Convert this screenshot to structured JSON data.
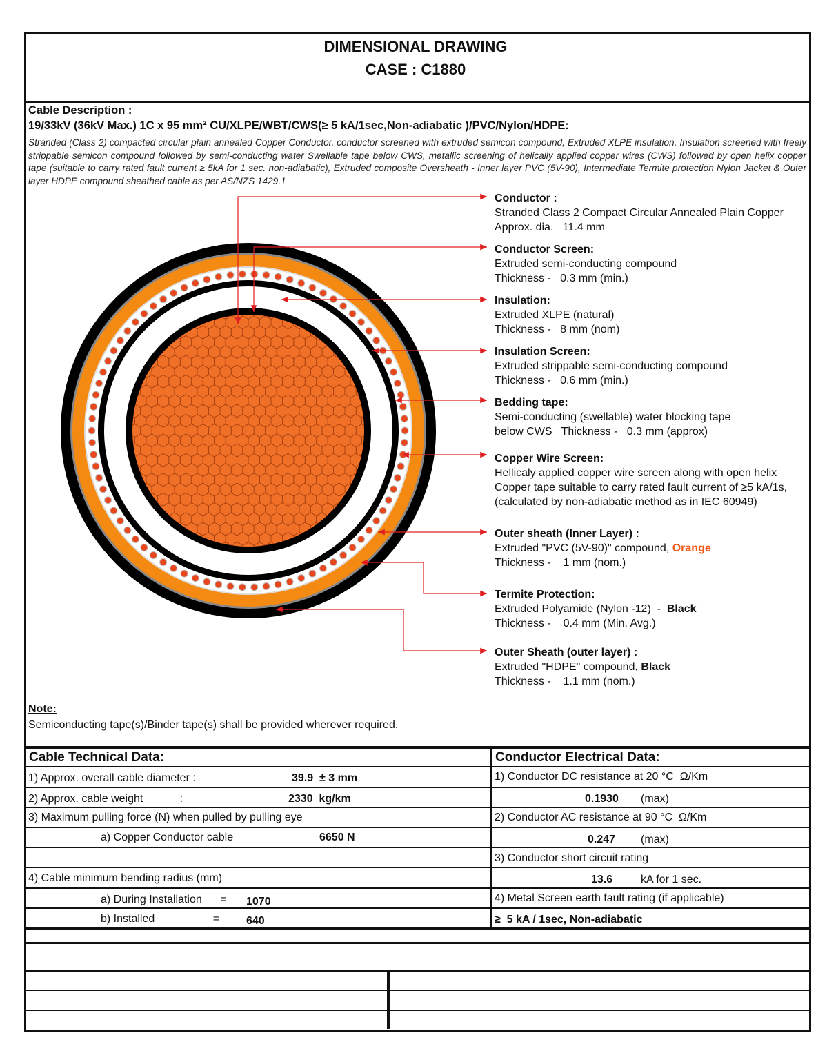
{
  "header": {
    "title": "DIMENSIONAL DRAWING",
    "case": "CASE : C1880"
  },
  "description": {
    "heading": "Cable Description :",
    "spec": "19/33kV (36kV Max.) 1C x 95 mm² CU/XLPE/WBT/CWS(≥ 5 kA/1sec,Non-adiabatic )/PVC/Nylon/HDPE:",
    "text": "Stranded (Class 2) compacted circular plain annealed Copper Conductor, conductor screened with extruded semicon compound, Extruded XLPE insulation, Insulation screened with freely strippable semicon compound followed by semi-conducting water Swellable tape below CWS, metallic screening of helically applied copper wires (CWS) followed by open helix copper tape (suitable to carry rated fault current ≥ 5kA for 1 sec. non-adiabatic), Extruded composite Oversheath - Inner layer PVC (5V-90), Intermediate Termite protection Nylon Jacket & Outer layer HDPE compound sheathed cable as per AS/NZS 1429.1"
  },
  "colors": {
    "conductor": "#f07028",
    "orange_sheath": "#f58a12",
    "arrow": "#e02020",
    "black": "#000000"
  },
  "layers": [
    {
      "title": "Conductor :",
      "lines": [
        "Stranded Class 2 Compact Circular Annealed Plain Copper",
        "Approx. dia.   11.4 mm"
      ]
    },
    {
      "title": "Conductor Screen:",
      "lines": [
        "Extruded semi-conducting compound",
        "Thickness -   0.3 mm (min.)"
      ]
    },
    {
      "title": "Insulation:",
      "lines": [
        "Extruded XLPE (natural)",
        "Thickness -   8 mm (nom)"
      ]
    },
    {
      "title": "Insulation Screen:",
      "lines": [
        "Extruded strippable semi-conducting compound",
        "Thickness -   0.6 mm (min.)"
      ]
    },
    {
      "title": "Bedding tape:",
      "lines": [
        "Semi-conducting (swellable) water blocking tape",
        "below CWS   Thickness -   0.3 mm (approx)"
      ]
    },
    {
      "title": "Copper Wire Screen:",
      "lines": [
        "Hellicaly applied copper wire screen along with open helix",
        "Copper tape suitable to carry rated fault current of ≥5 kA/1s,",
        "(calculated by non-adiabatic method as in IEC 60949)"
      ]
    },
    {
      "title": "Outer sheath (Inner Layer) :",
      "lines": [
        "Extruded \"PVC (5V-90)\" compound, ",
        "Thickness -    1 mm (nom.)"
      ],
      "emph": "Orange"
    },
    {
      "title": "Termite Protection:",
      "lines": [
        "Extruded Polyamide (Nylon -12)  -  ",
        "Thickness -    0.4 mm (Min. Avg.)"
      ],
      "emph": "Black"
    },
    {
      "title": "Outer Sheath (outer layer) :",
      "lines": [
        "Extruded \"HDPE\" compound, ",
        "Thickness -    1.1 mm (nom.)"
      ],
      "emph": "Black"
    }
  ],
  "note": {
    "heading": "Note:",
    "text": "Semiconducting tape(s)/Binder tape(s) shall be provided wherever required."
  },
  "technical": {
    "heading": "Cable Technical Data:",
    "diameter_label": "1) Approx. overall cable diameter :",
    "diameter_value": "39.9  ± 3 mm",
    "weight_label": "2) Approx. cable weight            :",
    "weight_value": "2330  kg/km",
    "pulling_label": "3) Maximum pulling force (N) when pulled by pulling eye",
    "pulling_sub_label": "a) Copper Conductor cable",
    "pulling_value": "6650 N",
    "bending_label": "4) Cable minimum bending radius (mm)",
    "install_label": "a) During Installation      =",
    "install_value": "1070",
    "installed_label": "b) Installed                   =",
    "installed_value": "640"
  },
  "electrical": {
    "heading": "Conductor Electrical Data:",
    "dc_label": "1) Conductor DC resistance at 20 °C  Ω/Km",
    "dc_value": "0.1930",
    "dc_unit": "(max)",
    "ac_label": "2) Conductor AC resistance at 90 °C  Ω/Km",
    "ac_value": "0.247",
    "ac_unit": "(max)",
    "sc_label": "3) Conductor short circuit rating",
    "sc_value": "13.6",
    "sc_unit": "kA for 1 sec.",
    "screen_label": "4) Metal Screen earth fault rating (if applicable)",
    "screen_value": "≥  5 kA / 1sec, Non-adiabatic"
  }
}
